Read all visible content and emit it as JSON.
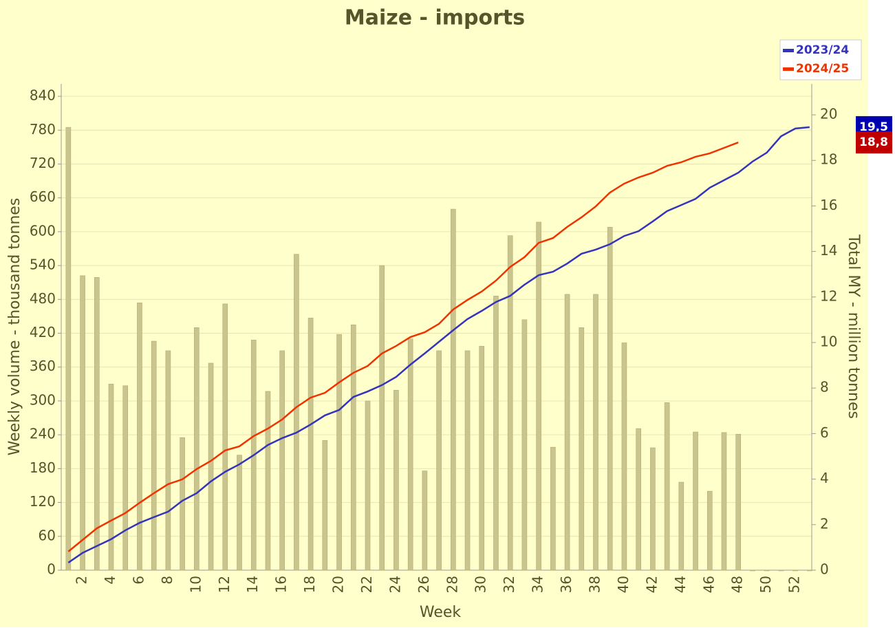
{
  "chart_data": {
    "type": "combo",
    "title": "Maize - imports",
    "x_label": "Week",
    "y_label": "Weekly volume - thousand tonnes",
    "y2_label": "Total MY - million tonnes",
    "categories": [
      null,
      "2",
      null,
      "4",
      null,
      "6",
      null,
      "8",
      null,
      "10",
      null,
      "12",
      null,
      "14",
      null,
      "16",
      null,
      "18",
      null,
      "20",
      null,
      "22",
      null,
      "24",
      null,
      "26",
      null,
      "28",
      null,
      "30",
      null,
      "32",
      null,
      "34",
      null,
      "36",
      null,
      "38",
      null,
      "40",
      null,
      "42",
      null,
      "44",
      null,
      "46",
      null,
      "48",
      null,
      "50",
      null,
      "52",
      null
    ],
    "bars": {
      "color": "#cac58e",
      "values": [
        785,
        522,
        519,
        330,
        327,
        474,
        406,
        389,
        235,
        430,
        367,
        472,
        204,
        408,
        317,
        389,
        560,
        447,
        230,
        418,
        435,
        300,
        540,
        319,
        410,
        176,
        389,
        640,
        389,
        397,
        486,
        593,
        444,
        617,
        218,
        489,
        430,
        489,
        608,
        403,
        251,
        217,
        297,
        156,
        245,
        140,
        244,
        241,
        0,
        0,
        0,
        0,
        0
      ]
    },
    "series": [
      {
        "name": "2023/24",
        "color": "#3333bb",
        "axis": "y2",
        "end_label": "19,5",
        "label_color": "#0000b0",
        "values": [
          0.33,
          0.76,
          1.06,
          1.36,
          1.75,
          2.08,
          2.33,
          2.57,
          3.05,
          3.38,
          3.9,
          4.32,
          4.65,
          5.05,
          5.5,
          5.8,
          6.04,
          6.4,
          6.8,
          7.04,
          7.61,
          7.85,
          8.13,
          8.49,
          9.03,
          9.52,
          10.03,
          10.54,
          11.03,
          11.39,
          11.78,
          12.05,
          12.54,
          12.96,
          13.11,
          13.47,
          13.9,
          14.08,
          14.32,
          14.68,
          14.89,
          15.32,
          15.77,
          16.04,
          16.31,
          16.8,
          17.13,
          17.46,
          17.95,
          18.34,
          19.06,
          19.4,
          19.46
        ]
      },
      {
        "name": "2024/25",
        "color": "#ee3300",
        "axis": "y2",
        "end_label": "18,8",
        "label_color": "#c00000",
        "values": [
          0.82,
          1.33,
          1.84,
          2.18,
          2.51,
          2.96,
          3.38,
          3.78,
          3.99,
          4.44,
          4.8,
          5.26,
          5.44,
          5.89,
          6.22,
          6.62,
          7.16,
          7.58,
          7.79,
          8.25,
          8.67,
          8.97,
          9.52,
          9.85,
          10.24,
          10.45,
          10.82,
          11.45,
          11.87,
          12.24,
          12.72,
          13.32,
          13.75,
          14.38,
          14.59,
          15.08,
          15.5,
          15.98,
          16.59,
          16.98,
          17.25,
          17.46,
          17.76,
          17.92,
          18.16,
          18.31,
          18.55,
          18.79,
          null,
          null,
          null,
          null,
          null
        ]
      }
    ],
    "ylim": [
      0,
      862
    ],
    "yticks": [
      0,
      60,
      120,
      180,
      240,
      300,
      360,
      420,
      480,
      540,
      600,
      660,
      720,
      780,
      840
    ],
    "y2lim": [
      0,
      21.36
    ],
    "y2ticks": [
      0,
      2,
      4,
      6,
      8,
      10,
      12,
      14,
      16,
      18,
      20
    ],
    "grid": true,
    "legend": "top-right"
  }
}
